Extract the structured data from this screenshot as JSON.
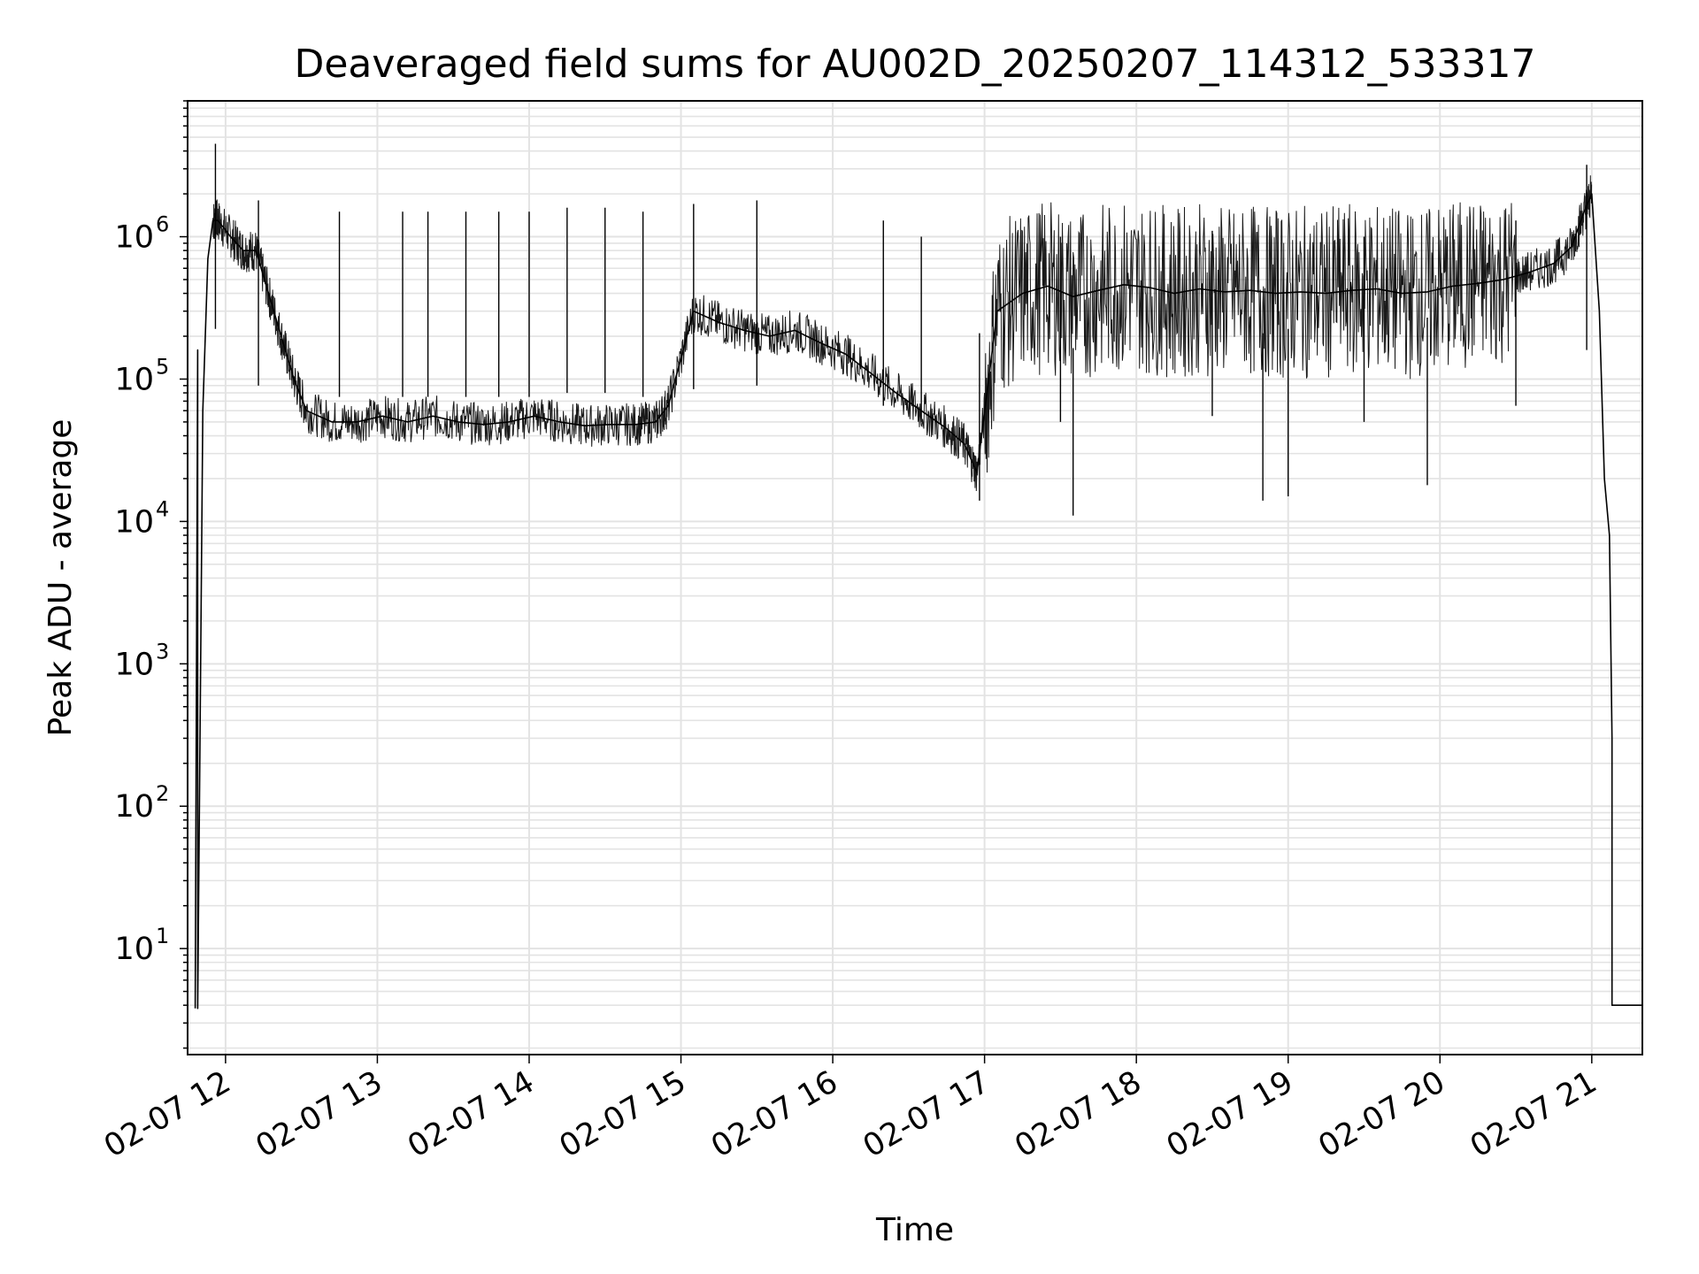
{
  "chart_data": {
    "type": "line",
    "title": "Deaveraged field sums for AU002D_20250207_114312_533317",
    "xlabel": "Time",
    "ylabel": "Peak ADU - average",
    "y_scale": "log",
    "xlim": [
      "2025-02-07 11:45",
      "2025-02-07 21:20"
    ],
    "ylim": [
      1.8,
      9000000
    ],
    "grid": true,
    "legend": "none",
    "x_ticks": [
      "02-07 12",
      "02-07 13",
      "02-07 14",
      "02-07 15",
      "02-07 16",
      "02-07 17",
      "02-07 18",
      "02-07 19",
      "02-07 20",
      "02-07 21"
    ],
    "x_tick_times": [
      "2025-02-07 12:00",
      "2025-02-07 13:00",
      "2025-02-07 14:00",
      "2025-02-07 15:00",
      "2025-02-07 16:00",
      "2025-02-07 17:00",
      "2025-02-07 18:00",
      "2025-02-07 19:00",
      "2025-02-07 20:00",
      "2025-02-07 21:00"
    ],
    "y_ticks": [
      {
        "base": "10",
        "exp": "1"
      },
      {
        "base": "10",
        "exp": "2"
      },
      {
        "base": "10",
        "exp": "3"
      },
      {
        "base": "10",
        "exp": "4"
      },
      {
        "base": "10",
        "exp": "5"
      },
      {
        "base": "10",
        "exp": "6"
      }
    ],
    "series": [
      {
        "color": "#000000",
        "x": [
          "2025-02-07 11:48",
          "2025-02-07 11:49",
          "2025-02-07 11:49",
          "2025-02-07 11:51",
          "2025-02-07 11:53",
          "2025-02-07 11:55",
          "2025-02-07 11:57",
          "2025-02-07 12:02",
          "2025-02-07 12:07",
          "2025-02-07 12:12",
          "2025-02-07 12:17",
          "2025-02-07 12:22",
          "2025-02-07 12:27",
          "2025-02-07 12:32",
          "2025-02-07 12:42",
          "2025-02-07 12:52",
          "2025-02-07 13:02",
          "2025-02-07 13:12",
          "2025-02-07 13:22",
          "2025-02-07 13:32",
          "2025-02-07 13:42",
          "2025-02-07 13:52",
          "2025-02-07 14:02",
          "2025-02-07 14:12",
          "2025-02-07 14:22",
          "2025-02-07 14:32",
          "2025-02-07 14:42",
          "2025-02-07 14:50",
          "2025-02-07 14:55",
          "2025-02-07 15:05",
          "2025-02-07 15:15",
          "2025-02-07 15:25",
          "2025-02-07 15:35",
          "2025-02-07 15:45",
          "2025-02-07 15:55",
          "2025-02-07 16:05",
          "2025-02-07 16:15",
          "2025-02-07 16:25",
          "2025-02-07 16:35",
          "2025-02-07 16:45",
          "2025-02-07 16:52",
          "2025-02-07 16:57",
          "2025-02-07 17:05",
          "2025-02-07 17:15",
          "2025-02-07 17:25",
          "2025-02-07 17:35",
          "2025-02-07 17:45",
          "2025-02-07 17:55",
          "2025-02-07 18:05",
          "2025-02-07 18:15",
          "2025-02-07 18:25",
          "2025-02-07 18:35",
          "2025-02-07 18:45",
          "2025-02-07 18:55",
          "2025-02-07 19:05",
          "2025-02-07 19:15",
          "2025-02-07 19:25",
          "2025-02-07 19:35",
          "2025-02-07 19:45",
          "2025-02-07 19:55",
          "2025-02-07 20:05",
          "2025-02-07 20:15",
          "2025-02-07 20:25",
          "2025-02-07 20:35",
          "2025-02-07 20:45",
          "2025-02-07 20:52",
          "2025-02-07 20:57",
          "2025-02-07 21:00",
          "2025-02-07 21:03",
          "2025-02-07 21:05",
          "2025-02-07 21:07",
          "2025-02-07 21:08",
          "2025-02-07 21:08",
          "2025-02-07 21:12",
          "2025-02-07 21:20"
        ],
        "y": [
          3.8,
          160000,
          3.8,
          60000,
          700000,
          1300000,
          1300000,
          1000000,
          800000,
          800000,
          400000,
          200000,
          100000,
          60000,
          50000,
          50000,
          55000,
          50000,
          55000,
          50000,
          48000,
          50000,
          55000,
          50000,
          47000,
          48000,
          48000,
          50000,
          65000,
          300000,
          250000,
          220000,
          200000,
          220000,
          180000,
          150000,
          110000,
          80000,
          60000,
          45000,
          35000,
          22000,
          300000,
          400000,
          450000,
          380000,
          420000,
          460000,
          440000,
          400000,
          430000,
          410000,
          420000,
          400000,
          410000,
          400000,
          420000,
          430000,
          400000,
          410000,
          450000,
          470000,
          500000,
          560000,
          650000,
          850000,
          1500000,
          2000000,
          300000,
          20000,
          8000,
          300,
          4,
          4,
          4
        ],
        "spikes_high": [
          {
            "x": "2025-02-07 11:56",
            "y": 4500000
          },
          {
            "x": "2025-02-07 12:13",
            "y": 1800000
          },
          {
            "x": "2025-02-07 12:45",
            "y": 1500000
          },
          {
            "x": "2025-02-07 13:10",
            "y": 1500000
          },
          {
            "x": "2025-02-07 13:20",
            "y": 1500000
          },
          {
            "x": "2025-02-07 13:35",
            "y": 1500000
          },
          {
            "x": "2025-02-07 13:48",
            "y": 1500000
          },
          {
            "x": "2025-02-07 14:00",
            "y": 1500000
          },
          {
            "x": "2025-02-07 14:15",
            "y": 1600000
          },
          {
            "x": "2025-02-07 14:30",
            "y": 1600000
          },
          {
            "x": "2025-02-07 14:45",
            "y": 1500000
          },
          {
            "x": "2025-02-07 15:05",
            "y": 1700000
          },
          {
            "x": "2025-02-07 15:30",
            "y": 1800000
          },
          {
            "x": "2025-02-07 16:20",
            "y": 1300000
          },
          {
            "x": "2025-02-07 16:35",
            "y": 1000000
          },
          {
            "x": "2025-02-07 17:30",
            "y": 1000000
          },
          {
            "x": "2025-02-07 18:30",
            "y": 1100000
          },
          {
            "x": "2025-02-07 19:30",
            "y": 1000000
          },
          {
            "x": "2025-02-07 20:30",
            "y": 1300000
          },
          {
            "x": "2025-02-07 20:58",
            "y": 3200000
          }
        ],
        "dips_low": [
          {
            "x": "2025-02-07 16:58",
            "y": 14000
          },
          {
            "x": "2025-02-07 17:35",
            "y": 11000
          },
          {
            "x": "2025-02-07 18:50",
            "y": 14000
          },
          {
            "x": "2025-02-07 19:00",
            "y": 15000
          },
          {
            "x": "2025-02-07 19:55",
            "y": 18000
          }
        ]
      }
    ]
  }
}
